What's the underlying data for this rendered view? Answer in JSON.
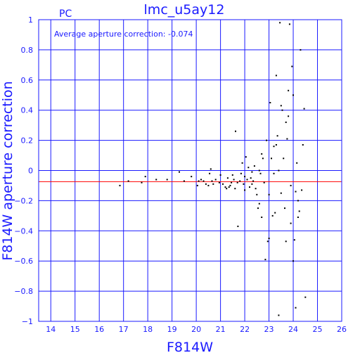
{
  "chart_data": {
    "type": "scatter",
    "title": "lmc_u5ay12",
    "corner_label": "PC",
    "annotation": "Average aperture correction: -0.074",
    "xlabel": "F814W",
    "ylabel": "F814W aperture correction",
    "xlim": [
      13.5,
      26
    ],
    "ylim": [
      -1,
      1
    ],
    "xticks": [
      14,
      15,
      16,
      17,
      18,
      19,
      20,
      21,
      22,
      23,
      24,
      25,
      26
    ],
    "yticks": [
      -1,
      -0.8,
      -0.6,
      -0.4,
      -0.2,
      0,
      0.2,
      0.4,
      0.6,
      0.8,
      1
    ],
    "ytick_labels": [
      "−1",
      "−0.8",
      "−0.6",
      "−0.4",
      "−0.2",
      "0",
      "0.2",
      "0.4",
      "0.6",
      "0.8",
      "1"
    ],
    "grid": true,
    "reference_line": {
      "y": -0.074
    },
    "colors": {
      "axes": "#1a1aff",
      "points": "#000000",
      "reference_line": "#ff0000"
    },
    "points": [
      [
        16.85,
        -0.1
      ],
      [
        17.2,
        -0.07
      ],
      [
        17.75,
        -0.08
      ],
      [
        17.9,
        -0.04
      ],
      [
        18.35,
        -0.06
      ],
      [
        18.8,
        -0.06
      ],
      [
        19.3,
        -0.01
      ],
      [
        19.5,
        -0.07
      ],
      [
        19.8,
        -0.04
      ],
      [
        20.05,
        -0.1
      ],
      [
        20.1,
        -0.07
      ],
      [
        20.2,
        -0.06
      ],
      [
        20.3,
        -0.07
      ],
      [
        20.4,
        -0.09
      ],
      [
        20.5,
        -0.1
      ],
      [
        20.55,
        -0.02
      ],
      [
        20.6,
        0.01
      ],
      [
        20.65,
        -0.07
      ],
      [
        20.7,
        -0.09
      ],
      [
        20.8,
        -0.06
      ],
      [
        20.95,
        -0.08
      ],
      [
        21.0,
        -0.03
      ],
      [
        21.1,
        -0.09
      ],
      [
        21.2,
        -0.11
      ],
      [
        21.25,
        -0.12
      ],
      [
        21.3,
        -0.05
      ],
      [
        21.35,
        -0.11
      ],
      [
        21.4,
        -0.1
      ],
      [
        21.45,
        -0.08
      ],
      [
        21.5,
        -0.03
      ],
      [
        21.55,
        -0.06
      ],
      [
        21.6,
        -0.12
      ],
      [
        21.62,
        0.26
      ],
      [
        21.7,
        -0.08
      ],
      [
        21.72,
        -0.37
      ],
      [
        21.8,
        -0.07
      ],
      [
        21.85,
        -0.02
      ],
      [
        21.9,
        0.05
      ],
      [
        21.95,
        -0.09
      ],
      [
        22.0,
        -0.04
      ],
      [
        22.05,
        0.09
      ],
      [
        22.1,
        -0.06
      ],
      [
        22.15,
        0.02
      ],
      [
        22.2,
        -0.11
      ],
      [
        22.25,
        -0.05
      ],
      [
        22.3,
        -0.01
      ],
      [
        22.35,
        -0.07
      ],
      [
        22.4,
        0.03
      ],
      [
        22.45,
        -0.12
      ],
      [
        22.5,
        -0.16
      ],
      [
        22.55,
        -0.25
      ],
      [
        22.6,
        -0.22
      ],
      [
        22.65,
        -0.02
      ],
      [
        22.7,
        -0.31
      ],
      [
        22.75,
        0.08
      ],
      [
        22.8,
        -0.08
      ],
      [
        22.85,
        -0.59
      ],
      [
        22.9,
        0.2
      ],
      [
        22.95,
        -0.47
      ],
      [
        23.0,
        -0.45
      ],
      [
        23.05,
        0.45
      ],
      [
        23.1,
        0.08
      ],
      [
        23.15,
        -0.3
      ],
      [
        23.2,
        0.16
      ],
      [
        23.25,
        -0.28
      ],
      [
        23.3,
        0.63
      ],
      [
        23.35,
        0.23
      ],
      [
        23.4,
        -0.96
      ],
      [
        23.45,
        0.98
      ],
      [
        23.5,
        0.43
      ],
      [
        23.55,
        0.4
      ],
      [
        23.6,
        0.08
      ],
      [
        23.65,
        -0.25
      ],
      [
        23.7,
        -0.47
      ],
      [
        23.75,
        0.21
      ],
      [
        23.8,
        0.53
      ],
      [
        23.85,
        0.97
      ],
      [
        23.9,
        -0.35
      ],
      [
        23.95,
        0.69
      ],
      [
        24.0,
        0.5
      ],
      [
        24.05,
        -0.46
      ],
      [
        24.1,
        -0.91
      ],
      [
        24.15,
        0.05
      ],
      [
        24.2,
        -0.2
      ],
      [
        24.25,
        -0.27
      ],
      [
        24.3,
        0.8
      ],
      [
        24.35,
        -0.13
      ],
      [
        24.4,
        0.17
      ],
      [
        24.45,
        0.41
      ],
      [
        24.5,
        -0.84
      ],
      [
        22.0,
        -0.13
      ],
      [
        22.3,
        -0.09
      ],
      [
        22.6,
        0.0
      ],
      [
        22.7,
        0.11
      ],
      [
        23.0,
        -0.16
      ],
      [
        23.2,
        -0.02
      ],
      [
        23.3,
        0.17
      ],
      [
        23.4,
        0.0
      ],
      [
        23.5,
        -0.15
      ],
      [
        23.7,
        0.32
      ],
      [
        23.8,
        0.36
      ],
      [
        23.9,
        -0.1
      ],
      [
        24.0,
        -0.6
      ],
      [
        24.1,
        -0.14
      ],
      [
        24.2,
        -0.31
      ]
    ]
  }
}
